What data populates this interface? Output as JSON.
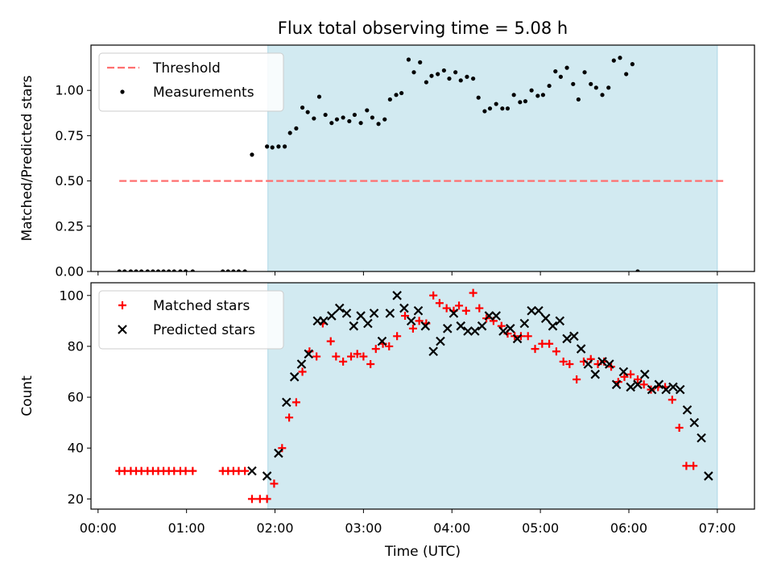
{
  "figure": {
    "title": "Flux total observing time = 5.08 h",
    "xlabel": "Time (UTC)",
    "xticks": [
      {
        "t": 0,
        "label": "00:00"
      },
      {
        "t": 1,
        "label": "01:00"
      },
      {
        "t": 2,
        "label": "02:00"
      },
      {
        "t": 3,
        "label": "03:00"
      },
      {
        "t": 4,
        "label": "04:00"
      },
      {
        "t": 5,
        "label": "05:00"
      },
      {
        "t": 6,
        "label": "06:00"
      },
      {
        "t": 7,
        "label": "07:00"
      }
    ],
    "xlim": [
      -0.08,
      7.42
    ],
    "shade": {
      "start": 1.92,
      "end": 7.0,
      "color": "#add8e6"
    }
  },
  "chart_data": [
    {
      "type": "scatter",
      "ylabel": "Matched/Predicted stars",
      "ylim": [
        0,
        1.25
      ],
      "yticks": [
        {
          "v": 0,
          "label": "0.00"
        },
        {
          "v": 0.25,
          "label": "0.25"
        },
        {
          "v": 0.5,
          "label": "0.50"
        },
        {
          "v": 0.75,
          "label": "0.75"
        },
        {
          "v": 1.0,
          "label": "1.00"
        }
      ],
      "legend_position": "upper-left",
      "threshold": {
        "name": "Threshold",
        "value": 0.5,
        "x_range": [
          0.24,
          7.08
        ],
        "color": "#ff6f6f"
      },
      "series": [
        {
          "name": "Measurements",
          "color": "#000000",
          "marker": "dot",
          "points": [
            [
              0.24,
              0
            ],
            [
              0.3,
              0
            ],
            [
              0.37,
              0
            ],
            [
              0.43,
              0
            ],
            [
              0.49,
              0
            ],
            [
              0.56,
              0
            ],
            [
              0.62,
              0
            ],
            [
              0.68,
              0
            ],
            [
              0.74,
              0
            ],
            [
              0.8,
              0
            ],
            [
              0.86,
              0
            ],
            [
              0.93,
              0
            ],
            [
              0.99,
              0
            ],
            [
              1.07,
              0
            ],
            [
              1.41,
              0
            ],
            [
              1.47,
              0
            ],
            [
              1.53,
              0
            ],
            [
              1.59,
              0
            ],
            [
              1.66,
              0
            ],
            [
              1.74,
              0.645
            ],
            [
              1.91,
              0.69
            ],
            [
              1.97,
              0.685
            ],
            [
              2.04,
              0.69
            ],
            [
              2.11,
              0.69
            ],
            [
              2.17,
              0.765
            ],
            [
              2.24,
              0.79
            ],
            [
              2.31,
              0.905
            ],
            [
              2.37,
              0.88
            ],
            [
              2.44,
              0.845
            ],
            [
              2.5,
              0.965
            ],
            [
              2.57,
              0.865
            ],
            [
              2.64,
              0.82
            ],
            [
              2.7,
              0.84
            ],
            [
              2.77,
              0.85
            ],
            [
              2.84,
              0.83
            ],
            [
              2.9,
              0.865
            ],
            [
              2.97,
              0.82
            ],
            [
              3.04,
              0.89
            ],
            [
              3.1,
              0.85
            ],
            [
              3.17,
              0.815
            ],
            [
              3.24,
              0.84
            ],
            [
              3.3,
              0.95
            ],
            [
              3.37,
              0.975
            ],
            [
              3.43,
              0.985
            ],
            [
              3.51,
              1.17
            ],
            [
              3.57,
              1.1
            ],
            [
              3.64,
              1.155
            ],
            [
              3.71,
              1.045
            ],
            [
              3.77,
              1.08
            ],
            [
              3.84,
              1.09
            ],
            [
              3.91,
              1.11
            ],
            [
              3.97,
              1.065
            ],
            [
              4.04,
              1.1
            ],
            [
              4.1,
              1.055
            ],
            [
              4.17,
              1.075
            ],
            [
              4.24,
              1.065
            ],
            [
              4.3,
              0.96
            ],
            [
              4.37,
              0.885
            ],
            [
              4.43,
              0.9
            ],
            [
              4.5,
              0.925
            ],
            [
              4.57,
              0.9
            ],
            [
              4.63,
              0.9
            ],
            [
              4.7,
              0.975
            ],
            [
              4.77,
              0.935
            ],
            [
              4.83,
              0.94
            ],
            [
              4.9,
              1.0
            ],
            [
              4.97,
              0.97
            ],
            [
              5.03,
              0.975
            ],
            [
              5.1,
              1.025
            ],
            [
              5.17,
              1.105
            ],
            [
              5.23,
              1.075
            ],
            [
              5.3,
              1.125
            ],
            [
              5.37,
              1.035
            ],
            [
              5.43,
              0.95
            ],
            [
              5.5,
              1.1
            ],
            [
              5.57,
              1.035
            ],
            [
              5.63,
              1.015
            ],
            [
              5.7,
              0.975
            ],
            [
              5.77,
              1.015
            ],
            [
              5.83,
              1.165
            ],
            [
              5.9,
              1.18
            ],
            [
              5.97,
              1.09
            ],
            [
              6.04,
              1.145
            ],
            [
              6.1,
              0
            ]
          ]
        }
      ]
    },
    {
      "type": "scatter",
      "ylabel": "Count",
      "ylim": [
        16,
        105
      ],
      "yticks": [
        {
          "v": 20,
          "label": "20"
        },
        {
          "v": 40,
          "label": "40"
        },
        {
          "v": 60,
          "label": "60"
        },
        {
          "v": 80,
          "label": "80"
        },
        {
          "v": 100,
          "label": "100"
        }
      ],
      "legend_position": "upper-left",
      "series": [
        {
          "name": "Matched stars",
          "color": "#ff0000",
          "marker": "plus",
          "points": [
            [
              0.24,
              31
            ],
            [
              0.3,
              31
            ],
            [
              0.37,
              31
            ],
            [
              0.43,
              31
            ],
            [
              0.49,
              31
            ],
            [
              0.56,
              31
            ],
            [
              0.62,
              31
            ],
            [
              0.68,
              31
            ],
            [
              0.74,
              31
            ],
            [
              0.8,
              31
            ],
            [
              0.86,
              31
            ],
            [
              0.93,
              31
            ],
            [
              0.99,
              31
            ],
            [
              1.07,
              31
            ],
            [
              1.41,
              31
            ],
            [
              1.47,
              31
            ],
            [
              1.53,
              31
            ],
            [
              1.59,
              31
            ],
            [
              1.66,
              31
            ],
            [
              1.74,
              20
            ],
            [
              1.83,
              20
            ],
            [
              1.91,
              20
            ],
            [
              1.99,
              26
            ],
            [
              2.08,
              40
            ],
            [
              2.16,
              52
            ],
            [
              2.24,
              58
            ],
            [
              2.31,
              70
            ],
            [
              2.39,
              78
            ],
            [
              2.47,
              76
            ],
            [
              2.54,
              89
            ],
            [
              2.63,
              82
            ],
            [
              2.69,
              76
            ],
            [
              2.77,
              74
            ],
            [
              2.86,
              76
            ],
            [
              2.93,
              77
            ],
            [
              3.0,
              76
            ],
            [
              3.08,
              73
            ],
            [
              3.14,
              79
            ],
            [
              3.22,
              81
            ],
            [
              3.29,
              80
            ],
            [
              3.38,
              84
            ],
            [
              3.47,
              92
            ],
            [
              3.56,
              87
            ],
            [
              3.63,
              90
            ],
            [
              3.71,
              89
            ],
            [
              3.79,
              100
            ],
            [
              3.86,
              97
            ],
            [
              3.94,
              95
            ],
            [
              4.02,
              94
            ],
            [
              4.08,
              96
            ],
            [
              4.16,
              94
            ],
            [
              4.24,
              101
            ],
            [
              4.31,
              95
            ],
            [
              4.39,
              91
            ],
            [
              4.47,
              90
            ],
            [
              4.56,
              88
            ],
            [
              4.63,
              85
            ],
            [
              4.71,
              84
            ],
            [
              4.78,
              84
            ],
            [
              4.86,
              84
            ],
            [
              4.94,
              79
            ],
            [
              5.02,
              81
            ],
            [
              5.1,
              81
            ],
            [
              5.18,
              78
            ],
            [
              5.26,
              74
            ],
            [
              5.33,
              73
            ],
            [
              5.41,
              67
            ],
            [
              5.49,
              74
            ],
            [
              5.57,
              75
            ],
            [
              5.65,
              73
            ],
            [
              5.72,
              74
            ],
            [
              5.8,
              72
            ],
            [
              5.88,
              66
            ],
            [
              5.95,
              68
            ],
            [
              6.02,
              69
            ],
            [
              6.1,
              67
            ],
            [
              6.17,
              65
            ],
            [
              6.25,
              63
            ],
            [
              6.33,
              64
            ],
            [
              6.41,
              64
            ],
            [
              6.49,
              59
            ],
            [
              6.57,
              48
            ],
            [
              6.65,
              33
            ],
            [
              6.73,
              33
            ]
          ]
        },
        {
          "name": "Predicted stars",
          "color": "#000000",
          "marker": "x",
          "points": [
            [
              1.74,
              31
            ],
            [
              1.91,
              29
            ],
            [
              2.04,
              38
            ],
            [
              2.13,
              58
            ],
            [
              2.22,
              68
            ],
            [
              2.3,
              73
            ],
            [
              2.38,
              77
            ],
            [
              2.48,
              90
            ],
            [
              2.55,
              90
            ],
            [
              2.64,
              92
            ],
            [
              2.73,
              95
            ],
            [
              2.81,
              93
            ],
            [
              2.89,
              88
            ],
            [
              2.97,
              92
            ],
            [
              3.05,
              89
            ],
            [
              3.12,
              93
            ],
            [
              3.21,
              82
            ],
            [
              3.3,
              93
            ],
            [
              3.38,
              100
            ],
            [
              3.46,
              95
            ],
            [
              3.54,
              90
            ],
            [
              3.62,
              94
            ],
            [
              3.7,
              88
            ],
            [
              3.79,
              78
            ],
            [
              3.87,
              82
            ],
            [
              3.95,
              87
            ],
            [
              4.02,
              93
            ],
            [
              4.1,
              88
            ],
            [
              4.18,
              86
            ],
            [
              4.26,
              86
            ],
            [
              4.34,
              88
            ],
            [
              4.42,
              92
            ],
            [
              4.5,
              92
            ],
            [
              4.58,
              86
            ],
            [
              4.66,
              87
            ],
            [
              4.74,
              83
            ],
            [
              4.82,
              89
            ],
            [
              4.9,
              94
            ],
            [
              4.98,
              94
            ],
            [
              5.06,
              91
            ],
            [
              5.14,
              88
            ],
            [
              5.22,
              90
            ],
            [
              5.3,
              83
            ],
            [
              5.38,
              84
            ],
            [
              5.46,
              79
            ],
            [
              5.54,
              73
            ],
            [
              5.62,
              69
            ],
            [
              5.7,
              74
            ],
            [
              5.78,
              73
            ],
            [
              5.86,
              65
            ],
            [
              5.94,
              70
            ],
            [
              6.02,
              64
            ],
            [
              6.1,
              65
            ],
            [
              6.18,
              69
            ],
            [
              6.26,
              63
            ],
            [
              6.34,
              65
            ],
            [
              6.42,
              63
            ],
            [
              6.5,
              64
            ],
            [
              6.58,
              63
            ],
            [
              6.66,
              55
            ],
            [
              6.74,
              50
            ],
            [
              6.82,
              44
            ],
            [
              6.9,
              29
            ]
          ]
        }
      ]
    }
  ]
}
